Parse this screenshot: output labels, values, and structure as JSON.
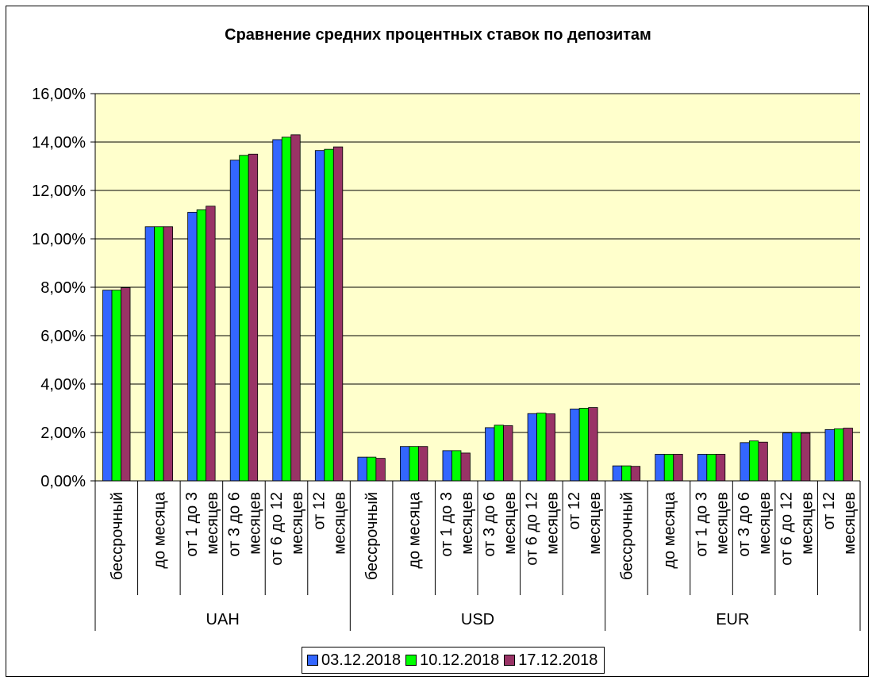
{
  "chart_data": {
    "type": "bar",
    "title": "Сравнение средних процентных ставок по депозитам",
    "xlabel": "",
    "ylabel": "",
    "ylim": [
      0,
      16
    ],
    "yticks": [
      0,
      2,
      4,
      6,
      8,
      10,
      12,
      14,
      16
    ],
    "ytick_labels": [
      "0,00%",
      "2,00%",
      "4,00%",
      "6,00%",
      "8,00%",
      "10,00%",
      "12,00%",
      "14,00%",
      "16,00%"
    ],
    "grid": true,
    "plot_background": "#ffffcc",
    "legend_position": "bottom",
    "groups": [
      {
        "name": "UAH",
        "categories": [
          [
            "бессрочный"
          ],
          [
            "до месяца"
          ],
          [
            "от 1 до 3",
            "месяцев"
          ],
          [
            "от 3 до 6",
            "месяцев"
          ],
          [
            "от 6 до 12",
            "месяцев"
          ],
          [
            "от 12",
            "месяцев"
          ]
        ]
      },
      {
        "name": "USD",
        "categories": [
          [
            "бессрочный"
          ],
          [
            "до месяца"
          ],
          [
            "от 1 до 3",
            "месяцев"
          ],
          [
            "от 3 до 6",
            "месяцев"
          ],
          [
            "от 6 до 12",
            "месяцев"
          ],
          [
            "от 12",
            "месяцев"
          ]
        ]
      },
      {
        "name": "EUR",
        "categories": [
          [
            "бессрочный"
          ],
          [
            "до месяца"
          ],
          [
            "от 1 до 3",
            "месяцев"
          ],
          [
            "от 3 до 6",
            "месяцев"
          ],
          [
            "от 6 до 12",
            "месяцев"
          ],
          [
            "от 12",
            "месяцев"
          ]
        ]
      }
    ],
    "series": [
      {
        "name": "03.12.2018",
        "color": "#3366ff",
        "values": [
          7.88,
          10.5,
          11.1,
          13.25,
          14.1,
          13.65,
          0.98,
          1.42,
          1.25,
          2.2,
          2.78,
          2.97,
          0.62,
          1.1,
          1.1,
          1.58,
          1.98,
          2.12
        ]
      },
      {
        "name": "10.12.2018",
        "color": "#00ff00",
        "values": [
          7.88,
          10.5,
          11.2,
          13.45,
          14.2,
          13.7,
          0.98,
          1.42,
          1.25,
          2.3,
          2.8,
          3.0,
          0.62,
          1.1,
          1.1,
          1.65,
          2.0,
          2.15
        ]
      },
      {
        "name": "17.12.2018",
        "color": "#993366",
        "values": [
          7.98,
          10.5,
          11.35,
          13.5,
          14.3,
          13.8,
          0.93,
          1.42,
          1.15,
          2.28,
          2.77,
          3.03,
          0.6,
          1.1,
          1.1,
          1.6,
          1.97,
          2.18
        ]
      }
    ]
  }
}
